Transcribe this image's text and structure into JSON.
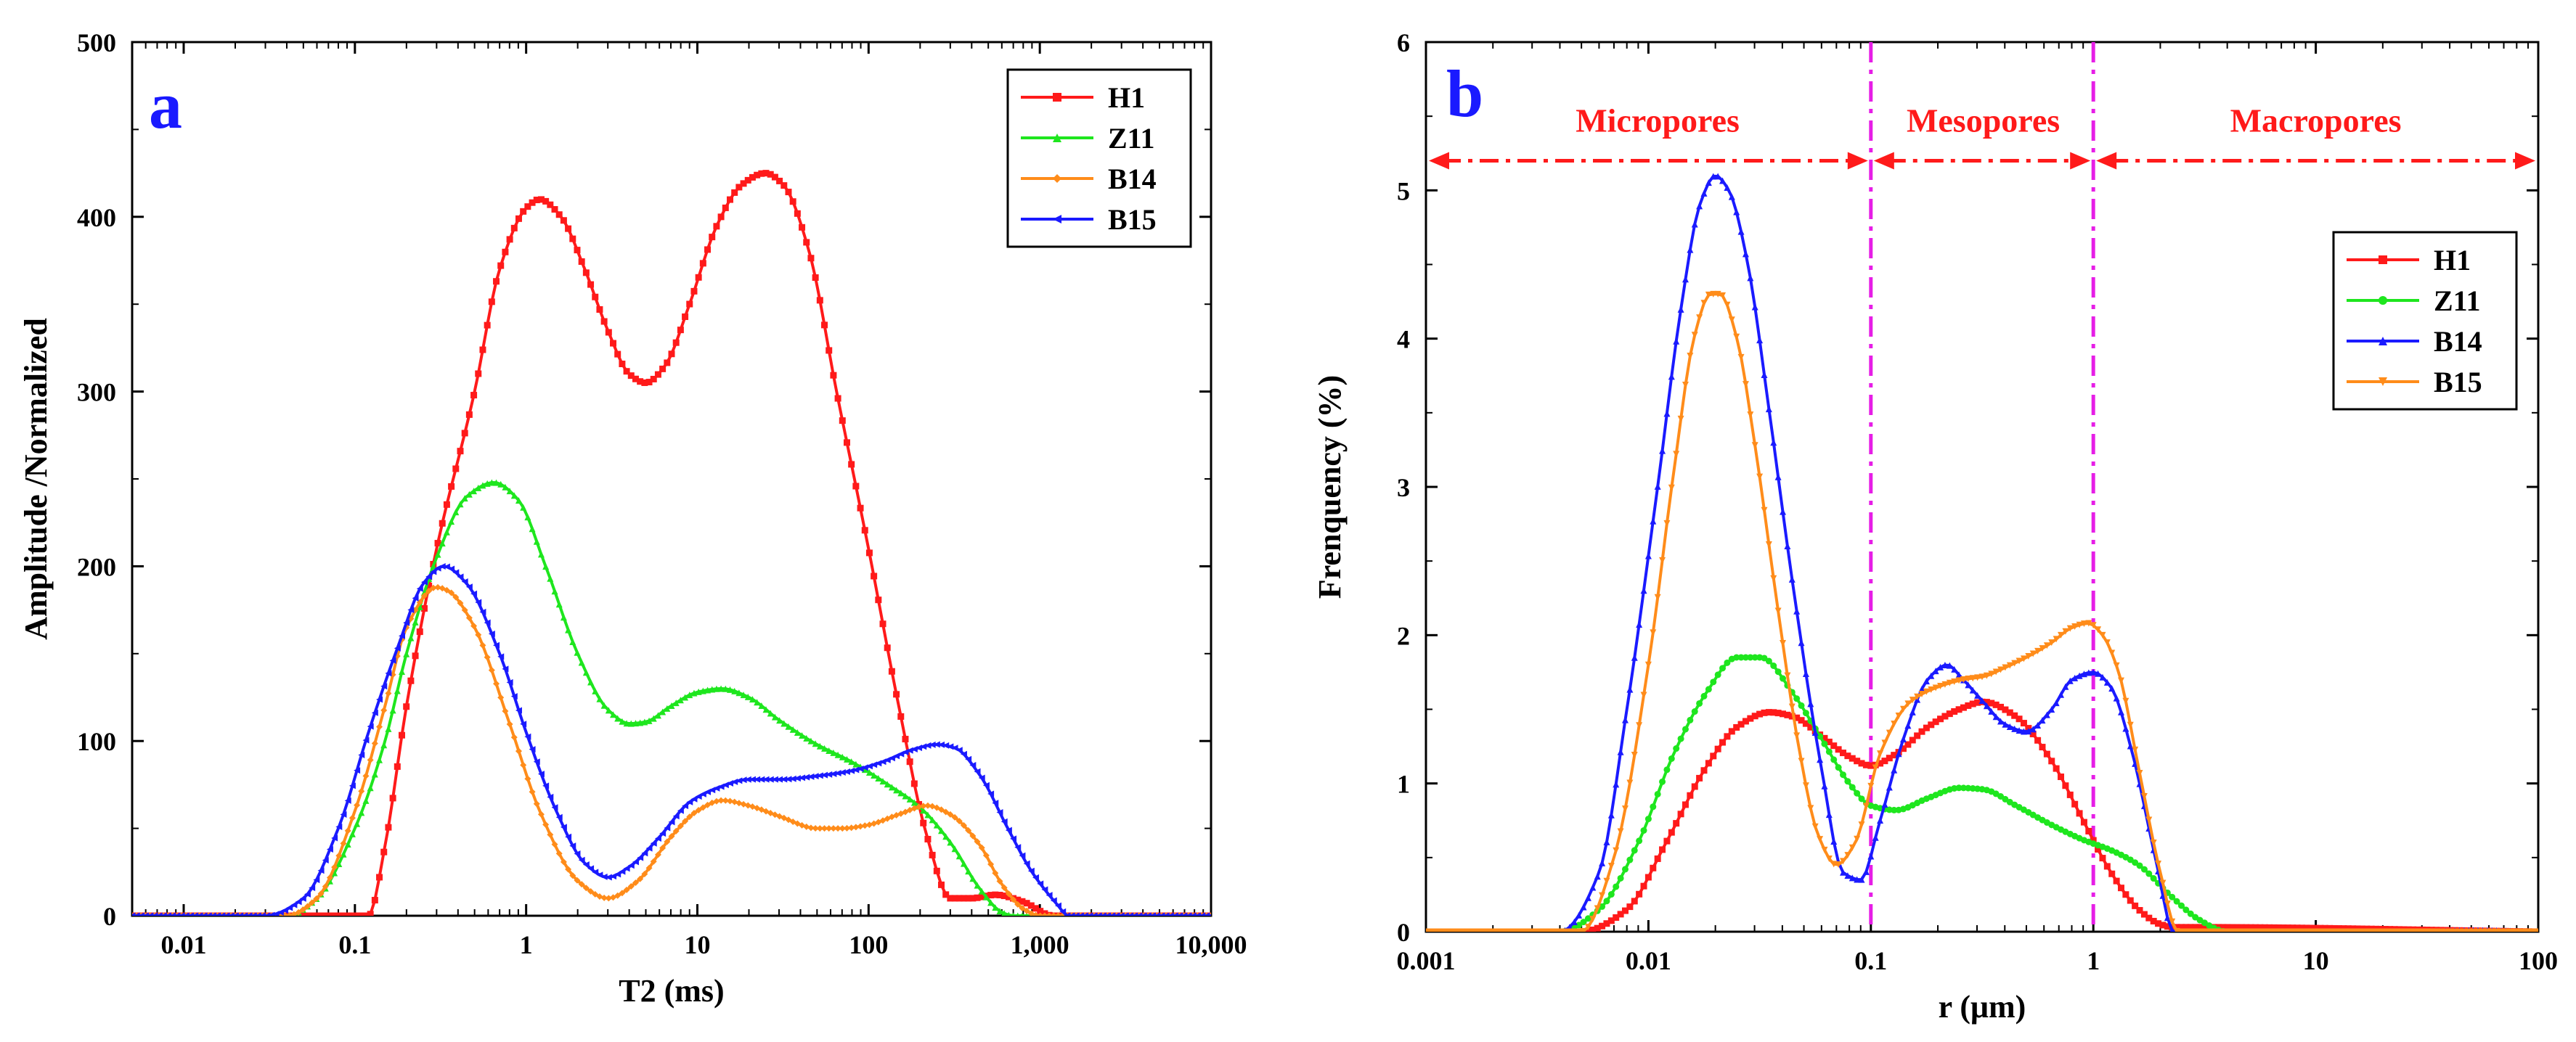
{
  "colors": {
    "H1": "#ff1a1a",
    "Z11": "#1ee61e",
    "B14_a": "#ff8c1a",
    "B15_a": "#1a1aff",
    "B14_b": "#1a1aff",
    "B15_b": "#ff8c1a",
    "region": "#ff1a1a",
    "divider": "#e61ee6",
    "panel_letter": "#1a1aff"
  },
  "chart_data": [
    {
      "panel": "a",
      "type": "line",
      "xscale": "log",
      "xlim": [
        0.005,
        10000
      ],
      "ylim": [
        0,
        500
      ],
      "xlabel": "T2 (ms)",
      "ylabel": "Amplitude /Normalized",
      "xticks": [
        0.01,
        0.1,
        1,
        10,
        100,
        1000,
        10000
      ],
      "xtick_labels": [
        "0.01",
        "0.1",
        "1",
        "10",
        "100",
        "1,000",
        "10,000"
      ],
      "yticks": [
        0,
        100,
        200,
        300,
        400,
        500
      ],
      "ytick_labels": [
        "0",
        "100",
        "200",
        "300",
        "400",
        "500"
      ],
      "legend_position": "top-right",
      "series": [
        {
          "name": "H1",
          "marker": "square",
          "x": [
            0.005,
            0.12,
            0.15,
            0.2,
            0.3,
            0.5,
            0.7,
            1.0,
            1.2,
            1.6,
            2.2,
            3.0,
            4.0,
            5.0,
            6.5,
            9.0,
            13,
            18,
            25,
            32,
            45,
            65,
            100,
            150,
            220,
            300,
            400,
            550,
            800,
            1200,
            1500,
            10000
          ],
          "y": [
            0,
            0,
            40,
            120,
            210,
            300,
            370,
            405,
            410,
            400,
            370,
            335,
            310,
            305,
            315,
            350,
            395,
            418,
            425,
            418,
            380,
            300,
            210,
            120,
            45,
            10,
            10,
            12,
            8,
            0,
            0,
            0
          ]
        },
        {
          "name": "Z11",
          "marker": "triangle-up",
          "x": [
            0.005,
            0.04,
            0.06,
            0.1,
            0.15,
            0.2,
            0.3,
            0.45,
            0.65,
            0.9,
            1.3,
            2.0,
            3.0,
            4.0,
            5.0,
            7.0,
            10,
            14,
            20,
            30,
            50,
            80,
            130,
            200,
            300,
            450,
            600,
            700,
            10000
          ],
          "y": [
            0,
            0,
            10,
            50,
            100,
            150,
            205,
            240,
            248,
            238,
            200,
            150,
            118,
            110,
            111,
            120,
            128,
            130,
            125,
            112,
            98,
            88,
            75,
            62,
            42,
            15,
            2,
            0,
            0
          ]
        },
        {
          "name": "B14",
          "marker": "diamond",
          "x": [
            0.005,
            0.04,
            0.06,
            0.1,
            0.15,
            0.2,
            0.3,
            0.35,
            0.5,
            0.8,
            1.2,
            2.0,
            3.0,
            4.5,
            7.0,
            10,
            14,
            20,
            30,
            50,
            70,
            100,
            150,
            220,
            300,
            450,
            600,
            800,
            1000,
            10000
          ],
          "y": [
            0,
            0,
            10,
            60,
            120,
            165,
            188,
            186,
            165,
            110,
            60,
            20,
            10,
            20,
            45,
            60,
            66,
            63,
            57,
            50,
            50,
            52,
            58,
            63,
            58,
            40,
            18,
            4,
            0,
            0
          ]
        },
        {
          "name": "B15",
          "marker": "triangle-left",
          "x": [
            0.005,
            0.03,
            0.05,
            0.08,
            0.12,
            0.18,
            0.25,
            0.33,
            0.45,
            0.7,
            1.0,
            1.5,
            2.2,
            3.0,
            4.0,
            6.0,
            9.0,
            13,
            20,
            30,
            50,
            80,
            120,
            180,
            250,
            320,
            450,
            650,
            900,
            1300,
            1450,
            10000
          ],
          "y": [
            0,
            0,
            10,
            50,
            105,
            155,
            190,
            200,
            190,
            150,
            105,
            60,
            30,
            22,
            28,
            45,
            65,
            73,
            78,
            78,
            80,
            83,
            88,
            95,
            98,
            96,
            80,
            50,
            25,
            5,
            0,
            0
          ]
        }
      ]
    },
    {
      "panel": "b",
      "type": "line",
      "xscale": "log",
      "xlim": [
        0.001,
        100
      ],
      "ylim": [
        0,
        6
      ],
      "xlabel": "r  (μm)",
      "ylabel": "Frenquency (%)",
      "xticks": [
        0.001,
        0.01,
        0.1,
        1,
        10,
        100
      ],
      "xtick_labels": [
        "0.001",
        "0.01",
        "0.1",
        "1",
        "10",
        "100"
      ],
      "yticks": [
        0,
        1,
        2,
        3,
        4,
        5,
        6
      ],
      "ytick_labels": [
        "0",
        "1",
        "2",
        "3",
        "4",
        "5",
        "6"
      ],
      "legend_position": "center-right",
      "vlines": [
        0.1,
        1
      ],
      "regions": [
        {
          "label": "Micropores",
          "x_center": 0.011
        },
        {
          "label": "Mesopores",
          "x_center": 0.32
        },
        {
          "label": "Macropores",
          "x_center": 10
        }
      ],
      "region_arrow_y": 5.2,
      "series": [
        {
          "name": "H1",
          "marker": "square",
          "x": [
            0.001,
            0.005,
            0.008,
            0.012,
            0.018,
            0.025,
            0.035,
            0.045,
            0.06,
            0.08,
            0.1,
            0.13,
            0.18,
            0.25,
            0.32,
            0.45,
            0.65,
            0.9,
            1.2,
            1.6,
            2.0,
            2.3,
            3.0,
            100
          ],
          "y": [
            0,
            0,
            0.15,
            0.6,
            1.1,
            1.38,
            1.48,
            1.45,
            1.32,
            1.18,
            1.12,
            1.2,
            1.38,
            1.5,
            1.55,
            1.45,
            1.15,
            0.75,
            0.4,
            0.15,
            0.05,
            0.03,
            0.03,
            0
          ]
        },
        {
          "name": "Z11",
          "marker": "circle",
          "x": [
            0.001,
            0.004,
            0.006,
            0.009,
            0.013,
            0.018,
            0.025,
            0.032,
            0.045,
            0.06,
            0.08,
            0.1,
            0.13,
            0.18,
            0.25,
            0.32,
            0.45,
            0.65,
            0.9,
            1.2,
            1.6,
            2.2,
            3.0,
            4.0,
            100
          ],
          "y": [
            0,
            0,
            0.15,
            0.6,
            1.2,
            1.6,
            1.85,
            1.85,
            1.6,
            1.3,
            1.0,
            0.85,
            0.82,
            0.9,
            0.97,
            0.96,
            0.85,
            0.72,
            0.62,
            0.55,
            0.45,
            0.25,
            0.08,
            0,
            0
          ]
        },
        {
          "name": "B14",
          "marker": "triangle-up",
          "x": [
            0.001,
            0.004,
            0.006,
            0.008,
            0.011,
            0.014,
            0.017,
            0.02,
            0.023,
            0.028,
            0.035,
            0.045,
            0.06,
            0.075,
            0.09,
            0.11,
            0.14,
            0.18,
            0.22,
            0.26,
            0.32,
            0.4,
            0.5,
            0.65,
            0.8,
            1.0,
            1.2,
            1.5,
            1.9,
            2.3,
            30,
            50,
            100
          ],
          "y": [
            0,
            0,
            0.4,
            1.5,
            3.0,
            4.2,
            4.9,
            5.1,
            5.0,
            4.5,
            3.5,
            2.3,
            1.1,
            0.4,
            0.35,
            0.75,
            1.3,
            1.7,
            1.8,
            1.7,
            1.55,
            1.4,
            1.35,
            1.5,
            1.7,
            1.75,
            1.65,
            1.2,
            0.5,
            0,
            0,
            0.01,
            0
          ]
        },
        {
          "name": "B15",
          "marker": "triangle-down",
          "x": [
            0.001,
            0.005,
            0.007,
            0.01,
            0.013,
            0.016,
            0.019,
            0.021,
            0.025,
            0.03,
            0.038,
            0.048,
            0.058,
            0.07,
            0.085,
            0.11,
            0.15,
            0.2,
            0.26,
            0.32,
            0.4,
            0.5,
            0.65,
            0.8,
            0.95,
            1.1,
            1.3,
            1.6,
            2.0,
            2.4,
            100
          ],
          "y": [
            0,
            0,
            0.5,
            1.8,
            3.1,
            4.0,
            4.3,
            4.3,
            4.0,
            3.3,
            2.2,
            1.2,
            0.65,
            0.45,
            0.6,
            1.2,
            1.55,
            1.65,
            1.7,
            1.72,
            1.78,
            1.85,
            1.95,
            2.05,
            2.08,
            2.0,
            1.75,
            1.1,
            0.4,
            0,
            0
          ]
        }
      ]
    }
  ],
  "panels": {
    "a": {
      "letter": "a"
    },
    "b": {
      "letter": "b"
    }
  }
}
